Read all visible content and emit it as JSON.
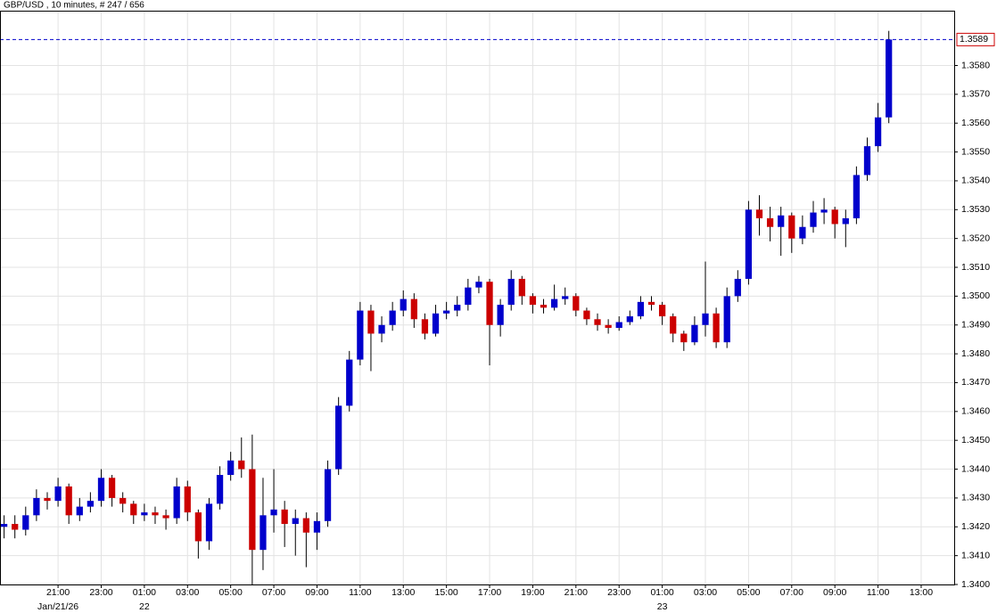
{
  "chart_data": {
    "type": "candlestick",
    "title": "GBP/USD , 10 minutes, # 247 / 656",
    "up_color": "#0000cc",
    "down_color": "#cc0000",
    "wick_color": "#000000",
    "grid": true,
    "xlim": [
      18.31,
      62.53
    ],
    "ylim": [
      1.34,
      1.3599
    ],
    "xticks": [
      {
        "value": 21,
        "label": "21:00"
      },
      {
        "value": 23,
        "label": "23:00"
      },
      {
        "value": 25,
        "label": "01:00"
      },
      {
        "value": 27,
        "label": "03:00"
      },
      {
        "value": 29,
        "label": "05:00"
      },
      {
        "value": 31,
        "label": "07:00"
      },
      {
        "value": 33,
        "label": "09:00"
      },
      {
        "value": 35,
        "label": "11:00"
      },
      {
        "value": 37,
        "label": "13:00"
      },
      {
        "value": 39,
        "label": "15:00"
      },
      {
        "value": 41,
        "label": "17:00"
      },
      {
        "value": 43,
        "label": "19:00"
      },
      {
        "value": 45,
        "label": "21:00"
      },
      {
        "value": 47,
        "label": "23:00"
      },
      {
        "value": 49,
        "label": "01:00"
      },
      {
        "value": 51,
        "label": "03:00"
      },
      {
        "value": 53,
        "label": "05:00"
      },
      {
        "value": 55,
        "label": "07:00"
      },
      {
        "value": 57,
        "label": "09:00"
      },
      {
        "value": 59,
        "label": "11:00"
      },
      {
        "value": 61,
        "label": "13:00"
      }
    ],
    "date_ticks": [
      {
        "value": 21,
        "label": "Jan/21/26"
      },
      {
        "value": 25,
        "label": "22"
      },
      {
        "value": 49,
        "label": "23"
      }
    ],
    "yticks": [
      {
        "value": 1.34,
        "label": "1.3400"
      },
      {
        "value": 1.341,
        "label": "1.3410"
      },
      {
        "value": 1.342,
        "label": "1.3420"
      },
      {
        "value": 1.343,
        "label": "1.3430"
      },
      {
        "value": 1.344,
        "label": "1.3440"
      },
      {
        "value": 1.345,
        "label": "1.3450"
      },
      {
        "value": 1.346,
        "label": "1.3460"
      },
      {
        "value": 1.347,
        "label": "1.3470"
      },
      {
        "value": 1.348,
        "label": "1.3480"
      },
      {
        "value": 1.349,
        "label": "1.3490"
      },
      {
        "value": 1.35,
        "label": "1.3500"
      },
      {
        "value": 1.351,
        "label": "1.3510"
      },
      {
        "value": 1.352,
        "label": "1.3520"
      },
      {
        "value": 1.353,
        "label": "1.3530"
      },
      {
        "value": 1.354,
        "label": "1.3540"
      },
      {
        "value": 1.355,
        "label": "1.3550"
      },
      {
        "value": 1.356,
        "label": "1.3560"
      },
      {
        "value": 1.357,
        "label": "1.3570"
      },
      {
        "value": 1.358,
        "label": "1.3580"
      }
    ],
    "x": [
      18.5,
      19,
      19.5,
      20,
      20.5,
      21,
      21.5,
      22,
      22.5,
      23,
      23.5,
      24,
      24.5,
      25,
      25.5,
      26,
      26.5,
      27,
      27.5,
      28,
      28.5,
      29,
      29.5,
      30,
      30.5,
      31,
      31.5,
      32,
      32.5,
      33,
      33.5,
      34,
      34.5,
      35,
      35.5,
      36,
      36.5,
      37,
      37.5,
      38,
      38.5,
      39,
      39.5,
      40,
      40.5,
      41,
      41.5,
      42,
      42.5,
      43,
      43.5,
      44,
      44.5,
      45,
      45.5,
      46,
      46.5,
      47,
      47.5,
      48,
      48.5,
      49,
      49.5,
      50,
      50.5,
      51,
      51.5,
      52,
      52.5,
      53,
      53.5,
      54,
      54.5,
      55,
      55.5,
      56,
      56.5,
      57,
      57.5,
      58,
      58.5,
      59,
      59.5
    ],
    "open": [
      1.342,
      1.3421,
      1.3419,
      1.3424,
      1.343,
      1.3429,
      1.3434,
      1.3424,
      1.3427,
      1.3429,
      1.3437,
      1.343,
      1.3428,
      1.3424,
      1.3425,
      1.3424,
      1.3423,
      1.3434,
      1.3425,
      1.3415,
      1.3428,
      1.3438,
      1.3443,
      1.344,
      1.3412,
      1.3424,
      1.3426,
      1.3421,
      1.3423,
      1.3418,
      1.3422,
      1.344,
      1.3462,
      1.3478,
      1.3495,
      1.3487,
      1.349,
      1.3495,
      1.3499,
      1.3492,
      1.3487,
      1.3494,
      1.3495,
      1.3497,
      1.3503,
      1.3505,
      1.349,
      1.3497,
      1.3506,
      1.35,
      1.3497,
      1.3496,
      1.3499,
      1.35,
      1.3495,
      1.3492,
      1.349,
      1.3489,
      1.3491,
      1.3493,
      1.3498,
      1.3497,
      1.3493,
      1.3487,
      1.3484,
      1.349,
      1.3494,
      1.3484,
      1.35,
      1.3506,
      1.353,
      1.3527,
      1.3524,
      1.3528,
      1.352,
      1.3524,
      1.3529,
      1.353,
      1.3525,
      1.3527,
      1.3542,
      1.3552,
      1.3562
    ],
    "high": [
      1.3424,
      1.3424,
      1.3427,
      1.3433,
      1.3432,
      1.3437,
      1.3435,
      1.343,
      1.3432,
      1.344,
      1.3438,
      1.3432,
      1.3429,
      1.3428,
      1.3427,
      1.3426,
      1.3437,
      1.3436,
      1.3426,
      1.343,
      1.3441,
      1.3446,
      1.3451,
      1.3452,
      1.3437,
      1.344,
      1.3429,
      1.3426,
      1.3425,
      1.3425,
      1.3443,
      1.3465,
      1.3481,
      1.3498,
      1.3497,
      1.3493,
      1.3498,
      1.3502,
      1.3501,
      1.3494,
      1.3497,
      1.3498,
      1.35,
      1.3506,
      1.3507,
      1.3506,
      1.3499,
      1.3509,
      1.3507,
      1.3501,
      1.3499,
      1.3504,
      1.3503,
      1.3501,
      1.3496,
      1.3494,
      1.3492,
      1.3493,
      1.3495,
      1.35,
      1.35,
      1.3498,
      1.3494,
      1.3488,
      1.3493,
      1.3512,
      1.3496,
      1.3503,
      1.3509,
      1.3533,
      1.3535,
      1.3531,
      1.3531,
      1.3529,
      1.3528,
      1.3533,
      1.3534,
      1.3531,
      1.353,
      1.3545,
      1.3555,
      1.3567,
      1.3592
    ],
    "low": [
      1.3416,
      1.3416,
      1.3417,
      1.3422,
      1.3426,
      1.3427,
      1.3421,
      1.3422,
      1.3425,
      1.3427,
      1.3427,
      1.3425,
      1.3421,
      1.3422,
      1.3421,
      1.3419,
      1.3421,
      1.3422,
      1.3409,
      1.3412,
      1.3426,
      1.3436,
      1.3437,
      1.34,
      1.3405,
      1.3418,
      1.3413,
      1.341,
      1.3406,
      1.3412,
      1.342,
      1.3438,
      1.346,
      1.3476,
      1.3474,
      1.3484,
      1.3488,
      1.3493,
      1.3489,
      1.3485,
      1.3486,
      1.3492,
      1.3493,
      1.3495,
      1.3501,
      1.3476,
      1.3486,
      1.3495,
      1.3497,
      1.3494,
      1.3494,
      1.3495,
      1.3497,
      1.3493,
      1.349,
      1.3488,
      1.3487,
      1.3488,
      1.349,
      1.3492,
      1.3495,
      1.349,
      1.3484,
      1.3481,
      1.3483,
      1.3486,
      1.3482,
      1.3482,
      1.3498,
      1.3504,
      1.3521,
      1.3519,
      1.3514,
      1.3515,
      1.3518,
      1.3522,
      1.3525,
      1.352,
      1.3517,
      1.3525,
      1.354,
      1.355,
      1.356
    ],
    "close": [
      1.3421,
      1.3419,
      1.3424,
      1.343,
      1.3429,
      1.3434,
      1.3424,
      1.3427,
      1.3429,
      1.3437,
      1.343,
      1.3428,
      1.3424,
      1.3425,
      1.3424,
      1.3423,
      1.3434,
      1.3425,
      1.3415,
      1.3428,
      1.3438,
      1.3443,
      1.344,
      1.3412,
      1.3424,
      1.3426,
      1.3421,
      1.3423,
      1.3418,
      1.3422,
      1.344,
      1.3462,
      1.3478,
      1.3495,
      1.3487,
      1.349,
      1.3495,
      1.3499,
      1.3492,
      1.3487,
      1.3494,
      1.3495,
      1.3497,
      1.3503,
      1.3505,
      1.349,
      1.3497,
      1.3506,
      1.35,
      1.3497,
      1.3496,
      1.3499,
      1.35,
      1.3495,
      1.3492,
      1.349,
      1.3489,
      1.3491,
      1.3493,
      1.3498,
      1.3497,
      1.3493,
      1.3487,
      1.3484,
      1.349,
      1.3494,
      1.3484,
      1.35,
      1.3506,
      1.353,
      1.3527,
      1.3524,
      1.3528,
      1.352,
      1.3524,
      1.3529,
      1.353,
      1.3525,
      1.3527,
      1.3542,
      1.3552,
      1.3562,
      1.3589
    ]
  }
}
